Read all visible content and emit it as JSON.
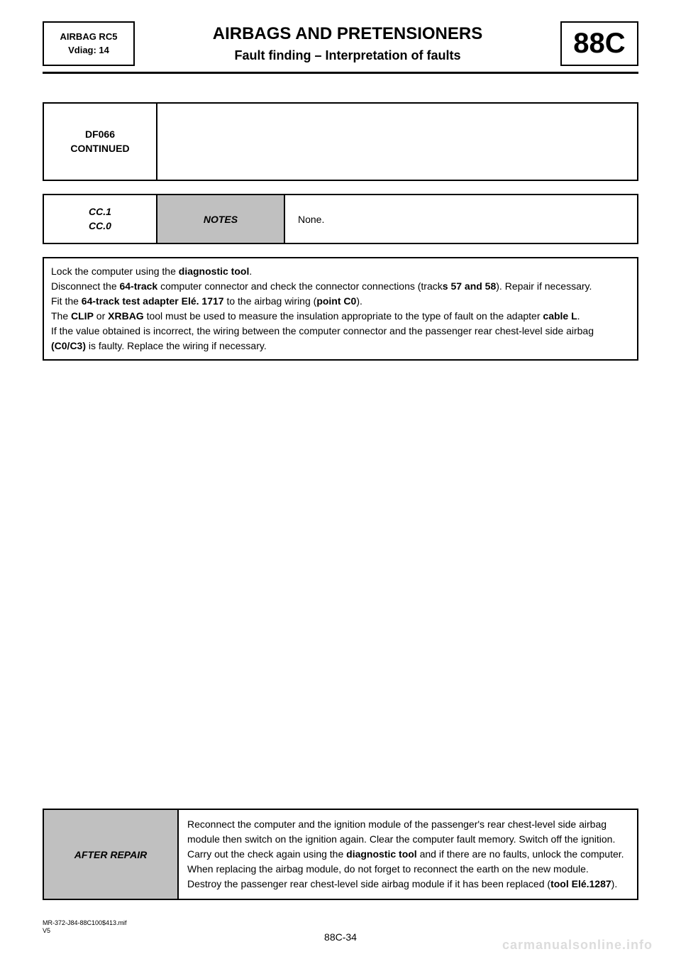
{
  "header": {
    "left_line1": "AIRBAG RC5",
    "left_line2": "Vdiag: 14",
    "title": "AIRBAGS AND PRETENSIONERS",
    "subtitle": "Fault finding – Interpretation of faults",
    "code": "88C"
  },
  "fault": {
    "code": "DF066",
    "continued": "CONTINUED"
  },
  "notes": {
    "code_line1": "CC.1",
    "code_line2": "CC.0",
    "label": "NOTES",
    "value": "None."
  },
  "instructions": {
    "p1_a": "Lock the computer using the ",
    "p1_b": "diagnostic tool",
    "p1_c": ".",
    "p2_a": "Disconnect the ",
    "p2_b": "64-track",
    "p2_c": " computer connector and check the connector connections (track",
    "p2_d": "s 57 and 58",
    "p2_e": "). Repair if necessary.",
    "p3_a": "Fit the ",
    "p3_b": "64-track test adapter Elé. 1717",
    "p3_c": " to the airbag wiring (",
    "p3_d": "point C0",
    "p3_e": ").",
    "p4_a": "The ",
    "p4_b": "CLIP",
    "p4_c": " or ",
    "p4_d": "XRBAG",
    "p4_e": " tool must be used to measure the insulation appropriate to the type of fault on the adapter ",
    "p4_f": "cable L",
    "p4_g": ".",
    "p5_a": "If the value obtained is incorrect, the wiring between the computer connector and the passenger rear chest-level side airbag ",
    "p5_b": "(C0/C3)",
    "p5_c": " is faulty. Replace the wiring if necessary."
  },
  "after_repair": {
    "label": "AFTER REPAIR",
    "p1": "Reconnect the computer and the ignition module of the passenger's rear chest-level side airbag module then switch on the ignition again. Clear the computer fault memory. Switch off the ignition.",
    "p2_a": "Carry out the check again using the ",
    "p2_b": "diagnostic tool",
    "p2_c": " and if there are no faults, unlock the computer. When replacing the airbag module, do not forget to reconnect the earth on the new module.",
    "p3_a": "Destroy the passenger rear chest-level side airbag module if it has been replaced (",
    "p3_b": "tool Elé.1287",
    "p3_c": ")."
  },
  "footer": {
    "doc_ref": "MR-372-J84-88C100$413.mif",
    "version": "V5",
    "page": "88C-34",
    "watermark": "carmanualsonline.info"
  },
  "colors": {
    "grey_fill": "#c0c0c0",
    "text": "#000000",
    "watermark": "#dcdcdc",
    "background": "#ffffff"
  }
}
